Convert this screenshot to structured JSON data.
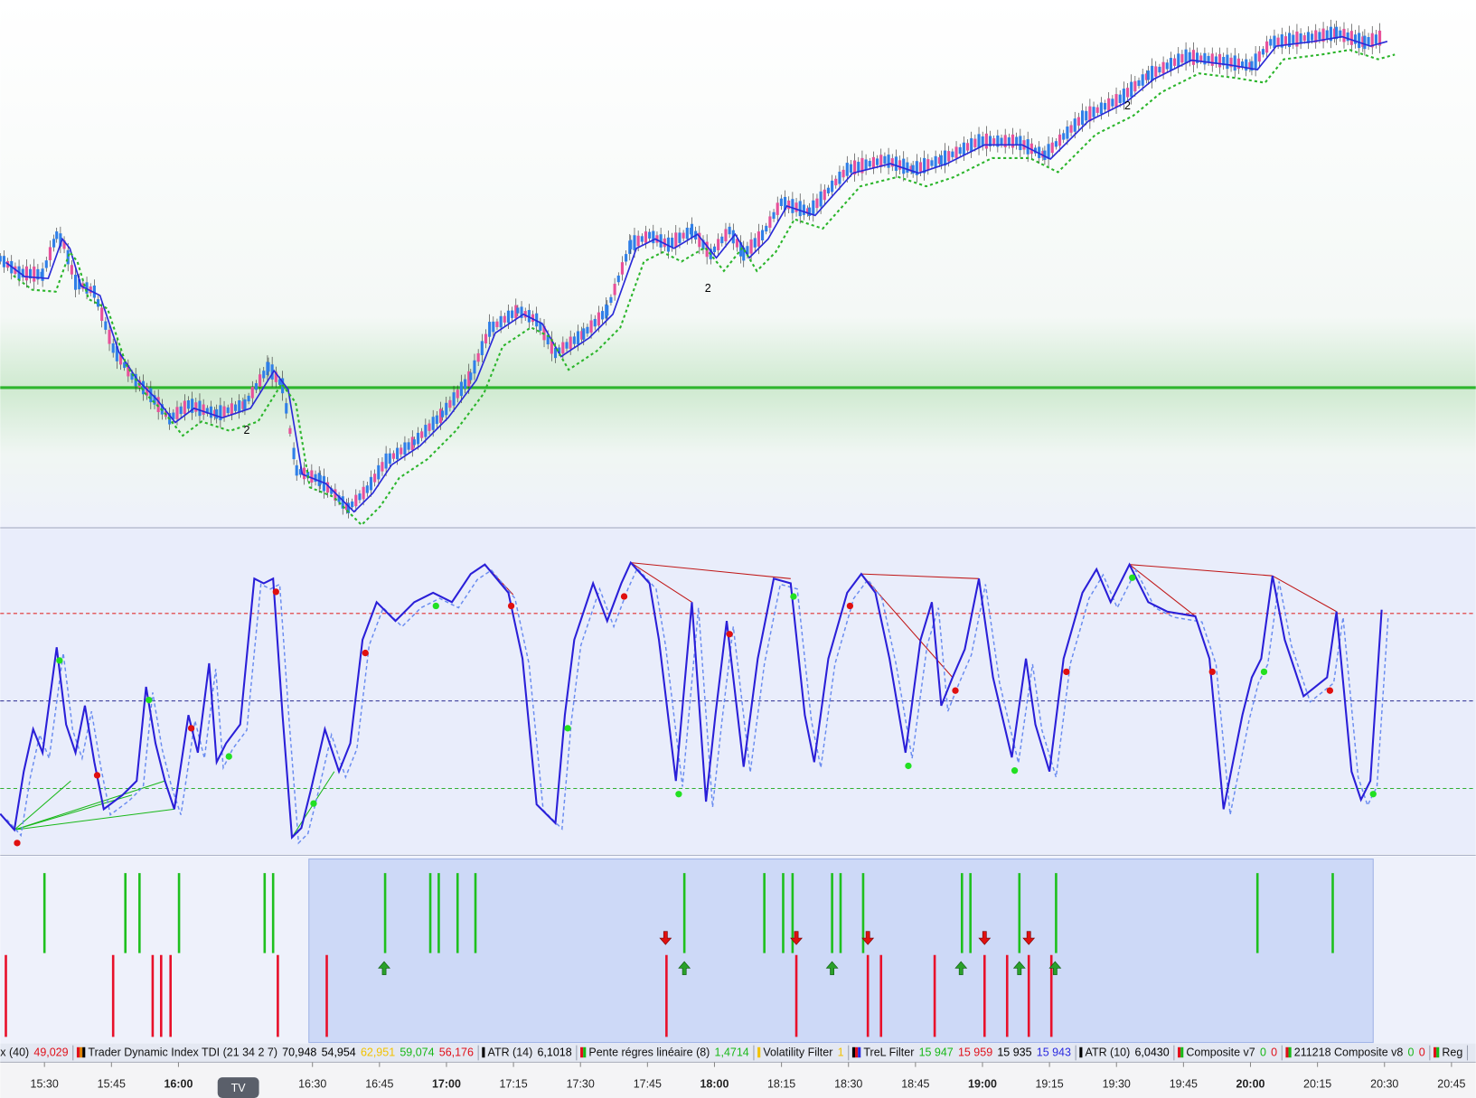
{
  "time_axis": {
    "labels": [
      "15:30",
      "15:45",
      "16:00",
      null,
      "16:30",
      "16:45",
      "17:00",
      "17:15",
      "17:30",
      "17:45",
      "18:00",
      "18:15",
      "18:30",
      "18:45",
      "19:00",
      "19:15",
      "19:30",
      "19:45",
      "20:00",
      "20:15",
      "20:30",
      "20:45"
    ]
  },
  "tv_button": "TV",
  "price_annotations": [
    "2",
    "2",
    "2"
  ],
  "status_bar": [
    {
      "label": "x (40)",
      "values": [
        {
          "text": "49,029",
          "color": "#e0101a"
        }
      ],
      "swatch": [
        "#e0101a"
      ]
    },
    {
      "label": "Trader Dynamic Index TDI (21 34 2 7)",
      "values": [
        {
          "text": "70,948",
          "color": "#000000"
        },
        {
          "text": "54,954",
          "color": "#000000"
        },
        {
          "text": "62,951",
          "color": "#f2c200"
        },
        {
          "text": "59,074",
          "color": "#18b818"
        },
        {
          "text": "56,176",
          "color": "#e0101a"
        }
      ],
      "swatch": [
        "#e0101a",
        "#e08000",
        "#000000"
      ]
    },
    {
      "label": "ATR (14)",
      "values": [
        {
          "text": "6,1018",
          "color": "#000000"
        }
      ],
      "swatch": [
        "#000000"
      ]
    },
    {
      "label": "Pente régres linéaire (8)",
      "values": [
        {
          "text": "1,4714",
          "color": "#18b818"
        }
      ],
      "swatch": [
        "#e0101a",
        "#18b818"
      ]
    },
    {
      "label": "Volatility Filter",
      "values": [
        {
          "text": "1",
          "color": "#f2c200"
        }
      ],
      "swatch": [
        "#f2c200"
      ]
    },
    {
      "label": "TreL Filter",
      "values": [
        {
          "text": "15 947",
          "color": "#18b818"
        },
        {
          "text": "15 959",
          "color": "#e0101a"
        },
        {
          "text": "15 935",
          "color": "#000000"
        },
        {
          "text": "15 943",
          "color": "#2a2ae0"
        }
      ],
      "swatch": [
        "#000000",
        "#e0101a",
        "#2a2ae0"
      ]
    },
    {
      "label": "ATR (10)",
      "values": [
        {
          "text": "6,0430",
          "color": "#000000"
        }
      ],
      "swatch": [
        "#000000"
      ]
    },
    {
      "label": "Composite v7",
      "values": [
        {
          "text": "0",
          "color": "#18b818"
        },
        {
          "text": "0",
          "color": "#e0101a"
        }
      ],
      "swatch": [
        "#e0101a",
        "#18b818"
      ]
    },
    {
      "label": "211218 Composite v8",
      "values": [
        {
          "text": "0",
          "color": "#18b818"
        },
        {
          "text": "0",
          "color": "#e0101a"
        }
      ],
      "swatch": [
        "#e0101a",
        "#18b818"
      ]
    },
    {
      "label": "Reg",
      "values": [],
      "swatch": [
        "#e0101a",
        "#18b818"
      ]
    }
  ]
}
